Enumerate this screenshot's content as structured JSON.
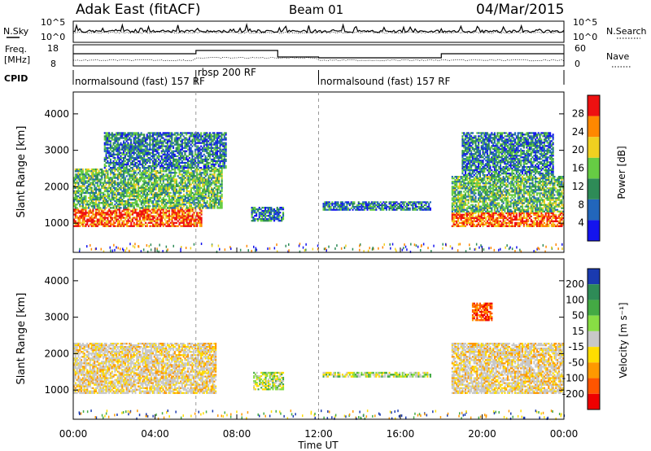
{
  "header": {
    "station": "Adak East (fitACF)",
    "beam": "Beam 01",
    "date": "04/Mar/2015"
  },
  "noise_panel": {
    "left_label": "N.Sky",
    "right_label": "N.Search",
    "left_ticks": [
      "10^5",
      "10^0"
    ],
    "right_ticks": [
      "10^5",
      "10^0"
    ]
  },
  "freq_panel": {
    "left_label_line1": "Freq.",
    "left_label_line2": "[MHz]",
    "left_ticks": [
      "18",
      "8"
    ],
    "right_label": "Nave",
    "right_ticks": [
      "60",
      "0"
    ]
  },
  "cpid": {
    "label": "CPID",
    "segments": [
      {
        "start_hour": 0,
        "end_hour": 6,
        "text": "normalsound (fast) 157 RF"
      },
      {
        "start_hour": 6,
        "end_hour": 12,
        "text": "rbsp 200 RF"
      },
      {
        "start_hour": 12,
        "end_hour": 24,
        "text": "normalsound (fast) 157 RF"
      }
    ]
  },
  "chart_data": [
    {
      "type": "heatmap",
      "name": "power",
      "ylabel": "Slant Range [km]",
      "yticks": [
        "1000",
        "2000",
        "3000",
        "4000"
      ],
      "ylim": [
        200,
        4600
      ],
      "xlim": [
        0,
        24
      ],
      "colorbar": {
        "label": "Power [dB]",
        "ticks": [
          "4",
          "8",
          "12",
          "16",
          "20",
          "24",
          "28"
        ],
        "colors": [
          "#1414ee",
          "#2266bb",
          "#2e8b57",
          "#66cc44",
          "#f0d020",
          "#ff8800",
          "#ee1111"
        ]
      },
      "regions": [
        {
          "hours": [
            0.0,
            6.3
          ],
          "range_km": [
            900,
            1400
          ],
          "level": "high"
        },
        {
          "hours": [
            0.0,
            7.3
          ],
          "range_km": [
            1400,
            2500
          ],
          "level": "medium"
        },
        {
          "hours": [
            1.5,
            7.5
          ],
          "range_km": [
            2500,
            3500
          ],
          "level": "low"
        },
        {
          "hours": [
            8.7,
            10.3
          ],
          "range_km": [
            1050,
            1450
          ],
          "level": "low"
        },
        {
          "hours": [
            12.2,
            17.5
          ],
          "range_km": [
            1350,
            1600
          ],
          "level": "low"
        },
        {
          "hours": [
            18.5,
            24.0
          ],
          "range_km": [
            900,
            1300
          ],
          "level": "high"
        },
        {
          "hours": [
            18.5,
            24.0
          ],
          "range_km": [
            1300,
            2300
          ],
          "level": "medium"
        },
        {
          "hours": [
            19.0,
            23.5
          ],
          "range_km": [
            2300,
            3500
          ],
          "level": "low"
        }
      ]
    },
    {
      "type": "heatmap",
      "name": "velocity",
      "xlabel": "Time UT",
      "ylabel": "Slant Range [km]",
      "yticks": [
        "1000",
        "2000",
        "3000",
        "4000"
      ],
      "ylim": [
        200,
        4600
      ],
      "xlim": [
        0,
        24
      ],
      "xticks": [
        "00:00",
        "04:00",
        "08:00",
        "12:00",
        "16:00",
        "20:00",
        "00:00"
      ],
      "colorbar": {
        "label": "Velocity [m s⁻¹]",
        "ticks": [
          "200",
          "100",
          "50",
          "15",
          "-15",
          "-50",
          "-100",
          "-200"
        ],
        "colors": [
          "#1a3ab0",
          "#2e8b57",
          "#44aa44",
          "#88dd44",
          "#c8c8c8",
          "#ffdd00",
          "#ff9900",
          "#ff5500",
          "#ee0000"
        ]
      },
      "regions": [
        {
          "hours": [
            0.0,
            7.0
          ],
          "range_km": [
            900,
            2300
          ],
          "level": "ground"
        },
        {
          "hours": [
            8.8,
            10.3
          ],
          "range_km": [
            1000,
            1500
          ],
          "level": "green"
        },
        {
          "hours": [
            12.2,
            17.5
          ],
          "range_km": [
            1350,
            1500
          ],
          "level": "green"
        },
        {
          "hours": [
            18.5,
            24.0
          ],
          "range_km": [
            900,
            2300
          ],
          "level": "ground"
        },
        {
          "hours": [
            19.5,
            20.5
          ],
          "range_km": [
            2900,
            3400
          ],
          "level": "red"
        }
      ]
    }
  ]
}
